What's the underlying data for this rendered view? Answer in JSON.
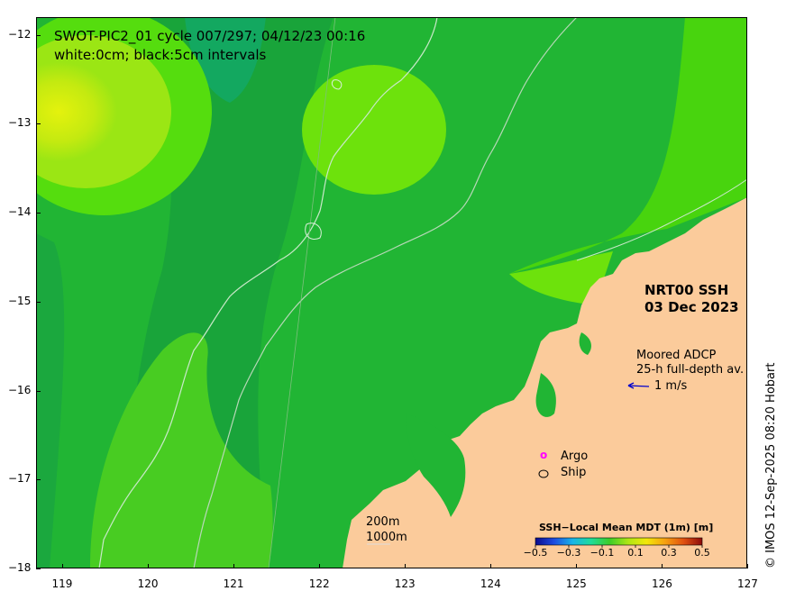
{
  "map": {
    "title_line1": "SWOT-PIC2_01 cycle 007/297; 04/12/23 00:16",
    "title_line2": "white:0cm; black:5cm intervals",
    "product_line1": "NRT00 SSH",
    "product_line2": "03 Dec 2023",
    "adcp_line1": "Moored ADCP",
    "adcp_line2": "25-h full-depth av.",
    "adcp_scale": "1 m/s",
    "legend_argo": "Argo",
    "legend_ship": "Ship",
    "legend_argo_symbol": "o",
    "scale_200m": "200m",
    "scale_1000m": "1000m",
    "credit": "© IMOS 12-Sep-2025 08:20 Hobart",
    "colors": {
      "land": "#fbcb9b",
      "ocean_base": "#21b534",
      "ocean_mid": "#19a43a",
      "high": "#55dd0e",
      "higher": "#9be614",
      "peak": "#d4ee0f",
      "argo": "#ff00ff",
      "arrow": "#0000cc"
    }
  },
  "axes": {
    "x_ticks": [
      "119",
      "120",
      "121",
      "122",
      "123",
      "124",
      "125",
      "126",
      "127"
    ],
    "y_ticks": [
      "−12",
      "−13",
      "−14",
      "−15",
      "−16",
      "−17",
      "−18"
    ],
    "x_range": [
      118.7,
      127
    ],
    "y_range": [
      -11.8,
      -18
    ]
  },
  "colorbar": {
    "title": "SSH−Local Mean MDT (1m) [m]",
    "ticks": [
      "−0.5",
      "−0.3",
      "−0.1",
      "0.1",
      "0.3",
      "0.5"
    ],
    "range": [
      -0.5,
      0.5
    ],
    "stops": [
      "#0a0a8c",
      "#1c4be0",
      "#18b4e8",
      "#1fdc9a",
      "#3ccc28",
      "#aee614",
      "#f2e80a",
      "#f6a010",
      "#e05010",
      "#8c0a0a"
    ]
  }
}
